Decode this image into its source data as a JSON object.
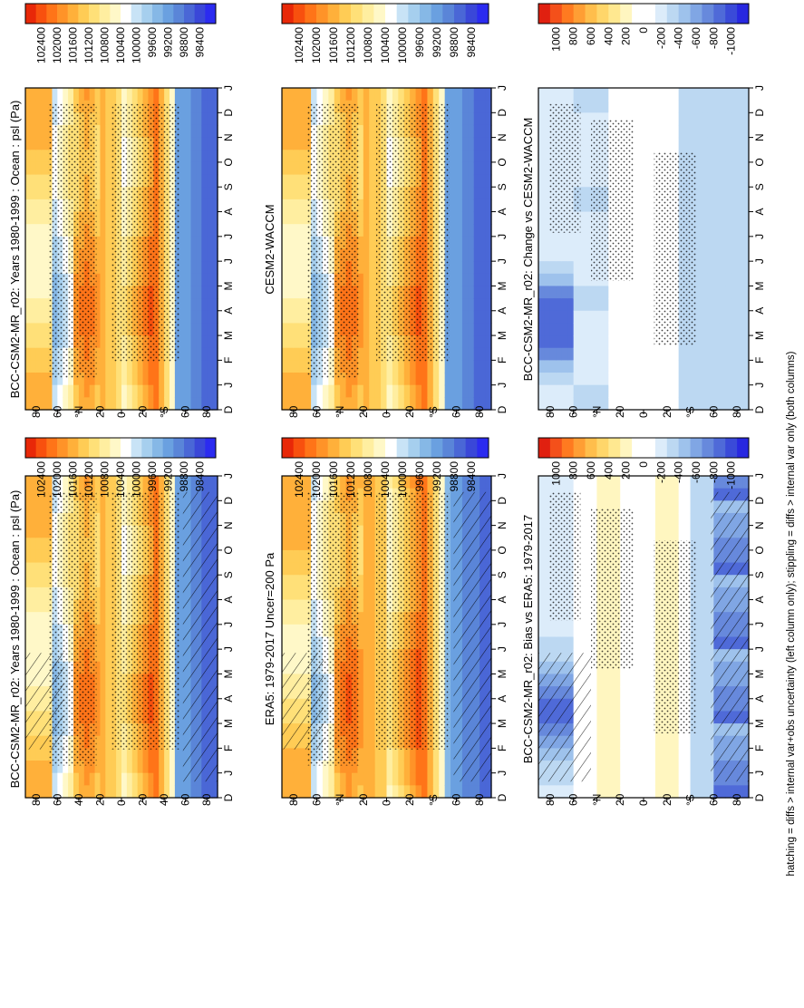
{
  "footnote": "hatching = diffs > internal var+obs uncertainty (left column only); stippling = diffs > internal var only (both columns)",
  "colors": {
    "psl_scale": [
      "#2b2bf0",
      "#3a47d8",
      "#4a67d6",
      "#5a85d8",
      "#6aa0e0",
      "#86b8e6",
      "#a6cfee",
      "#c8e3f6",
      "#ffffff",
      "#fff8c8",
      "#ffeea0",
      "#ffe078",
      "#ffcc55",
      "#ffb03a",
      "#ff9328",
      "#ff7418",
      "#f8500e",
      "#e82808"
    ],
    "diff_scale": [
      "#2828e0",
      "#3a4ad8",
      "#4f6ad8",
      "#6789dc",
      "#80a6e4",
      "#9ec2ec",
      "#bcd8f2",
      "#dcecfa",
      "#ffffff",
      "#ffffff",
      "#fff6c0",
      "#ffe890",
      "#ffd66a",
      "#ffbe4c",
      "#ff9e34",
      "#ff7a20",
      "#f4501a",
      "#e02010"
    ]
  },
  "chart_data": [
    {
      "id": "p1",
      "type": "heatmap",
      "title": "BCC-CSM2-MR_r02: Years 1980-1999 : Ocean : psl (Pa)",
      "x_ticks": [
        "D",
        "J",
        "F",
        "M",
        "A",
        "M",
        "J",
        "J",
        "A",
        "S",
        "O",
        "N",
        "D",
        "J"
      ],
      "y_ticks": [
        "80",
        "60",
        "40",
        "20",
        "0",
        "20",
        "40",
        "60",
        "80"
      ],
      "y_tick_overrides": {
        "40": "°N",
        "40s": "°S"
      },
      "colorbar_ticks": [
        "102400",
        "102000",
        "101600",
        "101200",
        "100800",
        "100400",
        "100000",
        "99600",
        "99200",
        "98800",
        "98400"
      ],
      "hatching": true,
      "stippling": true
    },
    {
      "id": "p2",
      "type": "heatmap",
      "title": "BCC-CSM2-MR_r02: Years 1980-1999 : Ocean : psl (Pa)",
      "x_ticks": [
        "D",
        "J",
        "F",
        "M",
        "A",
        "M",
        "J",
        "J",
        "A",
        "S",
        "O",
        "N",
        "D",
        "J"
      ],
      "y_ticks": [
        "80",
        "60",
        "°N",
        "20",
        "0",
        "20",
        "°S",
        "60",
        "80"
      ],
      "colorbar_ticks": [
        "102400",
        "102000",
        "101600",
        "101200",
        "100800",
        "100400",
        "100000",
        "99600",
        "99200",
        "98800",
        "98400"
      ],
      "hatching": false,
      "stippling": true
    },
    {
      "id": "p3",
      "type": "heatmap",
      "title": "ERA5: 1979-2017 Uncer=200 Pa",
      "x_ticks": [
        "D",
        "J",
        "F",
        "M",
        "A",
        "M",
        "J",
        "J",
        "A",
        "S",
        "O",
        "N",
        "D",
        "J"
      ],
      "y_ticks": [
        "80",
        "60",
        "°N",
        "20",
        "0",
        "20",
        "°S",
        "60",
        "80"
      ],
      "colorbar_ticks": [
        "102400",
        "102000",
        "101600",
        "101200",
        "100800",
        "100400",
        "100000",
        "99600",
        "99200",
        "98800",
        "98400"
      ],
      "hatching": true,
      "stippling": true
    },
    {
      "id": "p4",
      "type": "heatmap",
      "title": "CESM2-WACCM",
      "x_ticks": [
        "D",
        "J",
        "F",
        "M",
        "A",
        "M",
        "J",
        "J",
        "A",
        "S",
        "O",
        "N",
        "D",
        "J"
      ],
      "y_ticks": [
        "80",
        "60",
        "°N",
        "20",
        "0",
        "20",
        "°S",
        "60",
        "80"
      ],
      "colorbar_ticks": [
        "102400",
        "102000",
        "101600",
        "101200",
        "100800",
        "100400",
        "100000",
        "99600",
        "99200",
        "98800",
        "98400"
      ],
      "hatching": false,
      "stippling": true
    },
    {
      "id": "p5",
      "type": "heatmap",
      "title": "BCC-CSM2-MR_r02: Bias vs ERA5: 1979-2017",
      "x_ticks": [
        "D",
        "J",
        "F",
        "M",
        "A",
        "M",
        "J",
        "J",
        "A",
        "S",
        "O",
        "N",
        "D",
        "J"
      ],
      "y_ticks": [
        "80",
        "60",
        "°N",
        "20",
        "0",
        "20",
        "°S",
        "60",
        "80"
      ],
      "colorbar_ticks": [
        "1000",
        "800",
        "600",
        "400",
        "200",
        "0",
        "-200",
        "-400",
        "-600",
        "-800",
        "-1000"
      ],
      "hatching": true,
      "stippling": true
    },
    {
      "id": "p6",
      "type": "heatmap",
      "title": "BCC-CSM2-MR_r02: Change vs CESM2-WACCM",
      "x_ticks": [
        "D",
        "J",
        "F",
        "M",
        "A",
        "M",
        "J",
        "J",
        "A",
        "S",
        "O",
        "N",
        "D",
        "J"
      ],
      "y_ticks": [
        "80",
        "60",
        "°N",
        "20",
        "0",
        "20",
        "°S",
        "60",
        "80"
      ],
      "colorbar_ticks": [
        "1000",
        "800",
        "600",
        "400",
        "200",
        "0",
        "-200",
        "-400",
        "-600",
        "-800",
        "-1000"
      ],
      "hatching": false,
      "stippling": true
    }
  ]
}
